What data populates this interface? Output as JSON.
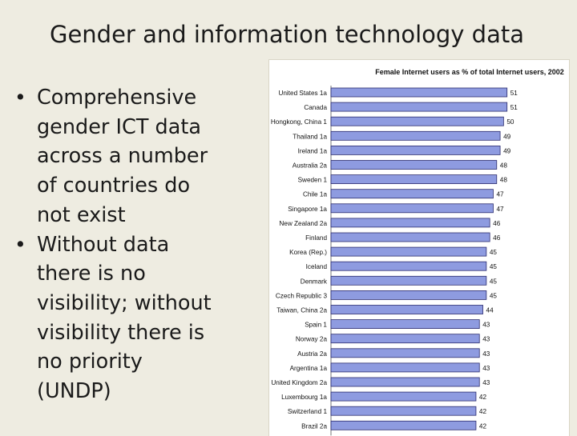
{
  "slide": {
    "title": "Gender and information technology data",
    "bullets": [
      "Comprehensive\ngender ICT data\nacross a number\nof countries do\nnot exist",
      "Without data\nthere is no\nvisibility; without\nvisibility there is\nno priority\n(UNDP)"
    ],
    "bullet_glyph": "•"
  },
  "chart_data": {
    "type": "bar",
    "orientation": "horizontal",
    "title": "Female Internet users as % of total Internet users, 2002",
    "categories": [
      "United States 1a",
      "Canada",
      "Hongkong, China 1",
      "Thailand 1a",
      "Ireland 1a",
      "Australia 2a",
      "Sweden 1",
      "Chile 1a",
      "Singapore 1a",
      "New Zealand 2a",
      "Finland",
      "Korea (Rep.)",
      "Iceland",
      "Denmark",
      "Czech Republic 3",
      "Taiwan, China 2a",
      "Spain 1",
      "Norway 2a",
      "Austria 2a",
      "Argentina 1a",
      "United Kingdom 2a",
      "Luxembourg 1a",
      "Switzerland 1",
      "Brazil 2a"
    ],
    "values": [
      51,
      51,
      50,
      49,
      49,
      48,
      48,
      47,
      47,
      46,
      46,
      45,
      45,
      45,
      45,
      44,
      43,
      43,
      43,
      43,
      43,
      42,
      42,
      42
    ],
    "value_labels": [
      "51",
      "51",
      "50",
      "49",
      "49",
      "48",
      "48",
      "47",
      "47",
      "46",
      "46",
      "45",
      "45",
      "45",
      "45",
      "44",
      "43",
      "43",
      "43",
      "43",
      "43",
      "42",
      "42",
      "42"
    ],
    "xlim": [
      0,
      52
    ],
    "grid": false,
    "bar_color": "#8e9be0",
    "bar_edge_color": "#2c2c6e"
  }
}
